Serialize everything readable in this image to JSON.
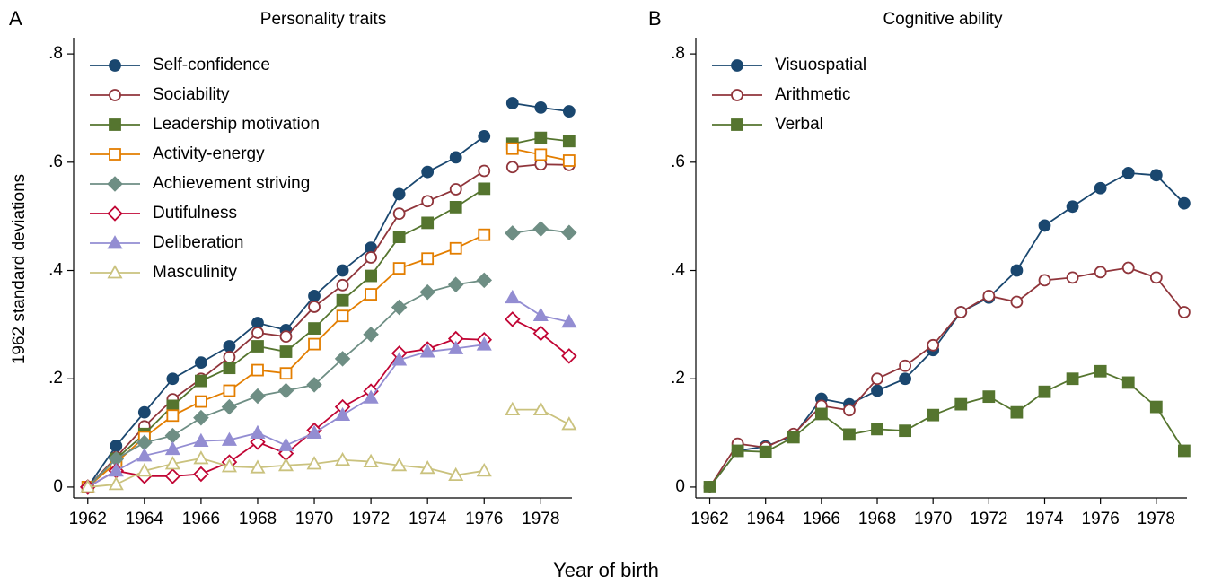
{
  "xlabel": "Year of birth",
  "chart_data": [
    {
      "type": "line",
      "panel": "A",
      "title": "Personality traits",
      "ylabel": "1962 standard deviations",
      "x": [
        1962,
        1963,
        1964,
        1965,
        1966,
        1967,
        1968,
        1969,
        1970,
        1971,
        1972,
        1973,
        1974,
        1975,
        1976,
        null,
        1977,
        1978,
        1979
      ],
      "xlim": [
        1961.5,
        1979.1
      ],
      "xticks": [
        1962,
        1964,
        1966,
        1968,
        1970,
        1972,
        1974,
        1976,
        1978
      ],
      "ylim": [
        -0.02,
        0.83
      ],
      "yticks": [
        0,
        {
          "value": 0.2,
          "label": ".2"
        },
        {
          "value": 0.4,
          "label": ".4"
        },
        {
          "value": 0.6,
          "label": ".6"
        },
        {
          "value": 0.8,
          "label": ".8"
        }
      ],
      "legend": "upper left",
      "series": [
        {
          "name": "Self-confidence",
          "color": "#1a476f",
          "marker": "circle",
          "filled": true,
          "values": [
            0,
            0.076,
            0.138,
            0.2,
            0.23,
            0.26,
            0.303,
            0.29,
            0.353,
            0.4,
            0.442,
            0.541,
            0.582,
            0.609,
            0.648,
            null,
            0.709,
            0.701,
            0.694
          ]
        },
        {
          "name": "Sociability",
          "color": "#90353b",
          "marker": "circle",
          "filled": false,
          "values": [
            0,
            0.055,
            0.112,
            0.162,
            0.2,
            0.24,
            0.285,
            0.278,
            0.333,
            0.373,
            0.424,
            0.505,
            0.528,
            0.55,
            0.584,
            null,
            0.591,
            0.596,
            0.595
          ]
        },
        {
          "name": "Leadership motivation",
          "color": "#55752f",
          "marker": "square",
          "filled": true,
          "values": [
            0,
            0.052,
            0.098,
            0.15,
            0.196,
            0.22,
            0.26,
            0.25,
            0.293,
            0.345,
            0.39,
            0.462,
            0.488,
            0.517,
            0.551,
            null,
            0.634,
            0.645,
            0.639
          ]
        },
        {
          "name": "Activity-energy",
          "color": "#e37e00",
          "marker": "square",
          "filled": false,
          "values": [
            0,
            0.045,
            0.092,
            0.132,
            0.158,
            0.178,
            0.216,
            0.21,
            0.264,
            0.316,
            0.356,
            0.404,
            0.422,
            0.441,
            0.466,
            null,
            0.625,
            0.614,
            0.603
          ]
        },
        {
          "name": "Achievement striving",
          "color": "#6e8e84",
          "marker": "diamond",
          "filled": true,
          "values": [
            0,
            0.052,
            0.082,
            0.095,
            0.128,
            0.148,
            0.168,
            0.178,
            0.189,
            0.237,
            0.282,
            0.332,
            0.36,
            0.374,
            0.382,
            null,
            0.469,
            0.477,
            0.47
          ]
        },
        {
          "name": "Dutifulness",
          "color": "#c10534",
          "marker": "diamond",
          "filled": false,
          "values": [
            0,
            0.03,
            0.02,
            0.02,
            0.024,
            0.046,
            0.083,
            0.062,
            0.105,
            0.148,
            0.177,
            0.247,
            0.255,
            0.274,
            0.272,
            null,
            0.31,
            0.284,
            0.242
          ]
        },
        {
          "name": "Deliberation",
          "color": "#938dd2",
          "marker": "triangle",
          "filled": true,
          "values": [
            0,
            0.03,
            0.058,
            0.07,
            0.085,
            0.087,
            0.1,
            0.077,
            0.1,
            0.133,
            0.165,
            0.235,
            0.25,
            0.256,
            0.263,
            null,
            0.35,
            0.317,
            0.305
          ]
        },
        {
          "name": "Masculinity",
          "color": "#cac27e",
          "marker": "triangle",
          "filled": false,
          "values": [
            0,
            0.005,
            0.03,
            0.043,
            0.053,
            0.038,
            0.036,
            0.04,
            0.043,
            0.05,
            0.047,
            0.04,
            0.035,
            0.022,
            0.03,
            null,
            0.143,
            0.143,
            0.116
          ]
        }
      ]
    },
    {
      "type": "line",
      "panel": "B",
      "title": "Cognitive ability",
      "x": [
        1962,
        1963,
        1964,
        1965,
        1966,
        1967,
        1968,
        1969,
        1970,
        1971,
        1972,
        1973,
        1974,
        1975,
        1976,
        1977,
        1978,
        1979
      ],
      "xlim": [
        1961.5,
        1979.1
      ],
      "xticks": [
        1962,
        1964,
        1966,
        1968,
        1970,
        1972,
        1974,
        1976,
        1978
      ],
      "ylim": [
        -0.02,
        0.83
      ],
      "yticks": [
        0,
        {
          "value": 0.2,
          "label": ".2"
        },
        {
          "value": 0.4,
          "label": ".4"
        },
        {
          "value": 0.6,
          "label": ".6"
        },
        {
          "value": 0.8,
          "label": ".8"
        }
      ],
      "legend": "upper left",
      "series": [
        {
          "name": "Visuospatial",
          "color": "#1a476f",
          "marker": "circle",
          "filled": true,
          "values": [
            0,
            0.067,
            0.075,
            0.095,
            0.163,
            0.153,
            0.178,
            0.2,
            0.253,
            0.323,
            0.35,
            0.4,
            0.483,
            0.518,
            0.552,
            0.58,
            0.576,
            0.524
          ]
        },
        {
          "name": "Arithmetic",
          "color": "#90353b",
          "marker": "circle",
          "filled": false,
          "values": [
            0,
            0.08,
            0.073,
            0.098,
            0.15,
            0.142,
            0.2,
            0.224,
            0.262,
            0.323,
            0.353,
            0.342,
            0.382,
            0.387,
            0.397,
            0.405,
            0.387,
            0.323
          ]
        },
        {
          "name": "Verbal",
          "color": "#55752f",
          "marker": "square",
          "filled": true,
          "values": [
            0,
            0.067,
            0.065,
            0.092,
            0.135,
            0.097,
            0.107,
            0.104,
            0.133,
            0.153,
            0.167,
            0.138,
            0.176,
            0.2,
            0.214,
            0.193,
            0.148,
            0.067
          ]
        }
      ]
    }
  ]
}
